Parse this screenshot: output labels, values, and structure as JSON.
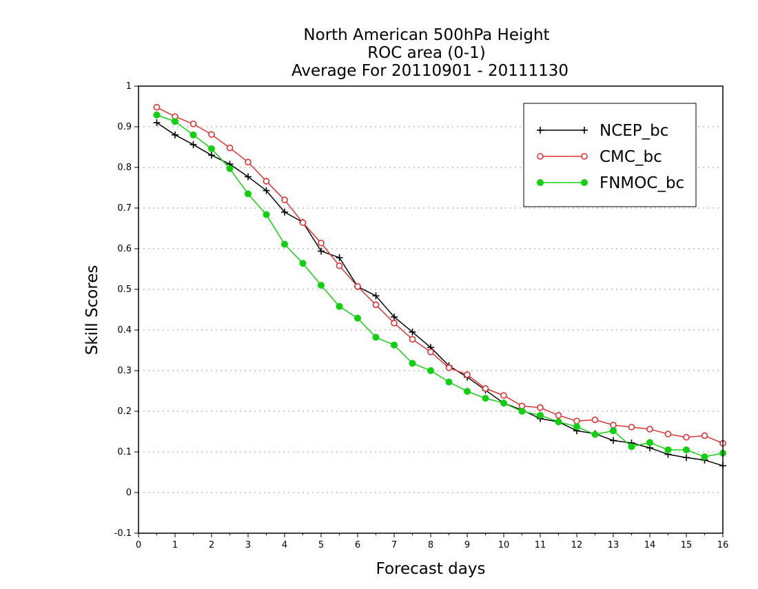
{
  "chart_data": {
    "type": "line",
    "title_lines": [
      "North American 500hPa Height",
      "ROC area (0-1)",
      "Average For 20110901 - 20111130"
    ],
    "xlabel": "Forecast days",
    "ylabel": "Skill Scores",
    "xlim": [
      0,
      16
    ],
    "ylim": [
      -0.1,
      1
    ],
    "x_ticks": [
      "0",
      "1",
      "2",
      "3",
      "4",
      "5",
      "6",
      "7",
      "8",
      "9",
      "10",
      "11",
      "12",
      "13",
      "14",
      "15",
      "16"
    ],
    "y_ticks": [
      "-0.1",
      "0",
      "0.1",
      "0.2",
      "0.3",
      "0.4",
      "0.5",
      "0.6",
      "0.7",
      "0.8",
      "0.9",
      "1"
    ],
    "grid": "horizontal dotted",
    "legend_position": "top-right",
    "x": [
      0.5,
      1,
      1.5,
      2,
      2.5,
      3,
      3.5,
      4,
      4.5,
      5,
      5.5,
      6,
      6.5,
      7,
      7.5,
      8,
      8.5,
      9,
      9.5,
      10,
      10.5,
      11,
      11.5,
      12,
      12.5,
      13,
      13.5,
      14,
      14.5,
      15,
      15.5,
      16
    ],
    "series": [
      {
        "name": "NCEP_bc",
        "color": "#000000",
        "marker": "plus",
        "values": [
          0.91,
          0.88,
          0.856,
          0.83,
          0.808,
          0.777,
          0.743,
          0.69,
          0.665,
          0.594,
          0.578,
          0.507,
          0.484,
          0.432,
          0.395,
          0.357,
          0.312,
          0.284,
          0.252,
          0.22,
          0.203,
          0.182,
          0.174,
          0.152,
          0.145,
          0.128,
          0.122,
          0.11,
          0.094,
          0.086,
          0.08,
          0.066
        ]
      },
      {
        "name": "CMC_bc",
        "color": "#e03030",
        "marker": "open-circle",
        "values": [
          0.948,
          0.925,
          0.907,
          0.881,
          0.848,
          0.813,
          0.766,
          0.72,
          0.664,
          0.614,
          0.558,
          0.507,
          0.462,
          0.417,
          0.377,
          0.346,
          0.307,
          0.29,
          0.256,
          0.239,
          0.213,
          0.209,
          0.19,
          0.176,
          0.179,
          0.166,
          0.161,
          0.156,
          0.144,
          0.136,
          0.14,
          0.121
        ]
      },
      {
        "name": "FNMOC_bc",
        "color": "#10d010",
        "marker": "filled-circle",
        "values": [
          0.929,
          0.913,
          0.88,
          0.846,
          0.797,
          0.735,
          0.684,
          0.611,
          0.564,
          0.51,
          0.458,
          0.429,
          0.382,
          0.363,
          0.318,
          0.3,
          0.272,
          0.249,
          0.232,
          0.22,
          0.2,
          0.19,
          0.174,
          0.162,
          0.143,
          0.152,
          0.113,
          0.123,
          0.105,
          0.105,
          0.088,
          0.097
        ]
      }
    ]
  }
}
